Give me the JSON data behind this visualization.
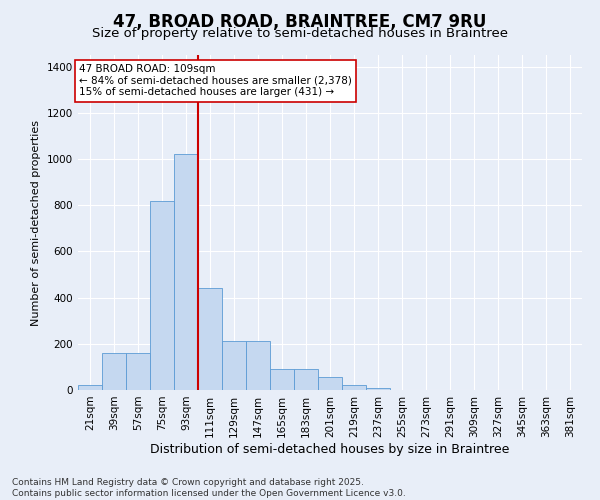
{
  "title": "47, BROAD ROAD, BRAINTREE, CM7 9RU",
  "subtitle": "Size of property relative to semi-detached houses in Braintree",
  "xlabel": "Distribution of semi-detached houses by size in Braintree",
  "ylabel": "Number of semi-detached properties",
  "categories": [
    "21sqm",
    "39sqm",
    "57sqm",
    "75sqm",
    "93sqm",
    "111sqm",
    "129sqm",
    "147sqm",
    "165sqm",
    "183sqm",
    "201sqm",
    "219sqm",
    "237sqm",
    "255sqm",
    "273sqm",
    "291sqm",
    "309sqm",
    "327sqm",
    "345sqm",
    "363sqm",
    "381sqm"
  ],
  "values": [
    20,
    160,
    160,
    820,
    1020,
    440,
    210,
    210,
    90,
    90,
    55,
    20,
    8,
    2,
    0,
    0,
    0,
    0,
    0,
    0,
    0
  ],
  "bar_color": "#c5d8f0",
  "bar_edge_color": "#5b9bd5",
  "vline_index": 5,
  "vline_color": "#cc0000",
  "annotation_text": "47 BROAD ROAD: 109sqm\n← 84% of semi-detached houses are smaller (2,378)\n15% of semi-detached houses are larger (431) →",
  "annotation_box_color": "#ffffff",
  "annotation_box_edge": "#cc0000",
  "ylim": [
    0,
    1450
  ],
  "yticks": [
    0,
    200,
    400,
    600,
    800,
    1000,
    1200,
    1400
  ],
  "background_color": "#e8eef8",
  "grid_color": "#ffffff",
  "footer_line1": "Contains HM Land Registry data © Crown copyright and database right 2025.",
  "footer_line2": "Contains public sector information licensed under the Open Government Licence v3.0.",
  "title_fontsize": 12,
  "subtitle_fontsize": 9.5,
  "xlabel_fontsize": 9,
  "ylabel_fontsize": 8,
  "tick_fontsize": 7.5,
  "annotation_fontsize": 7.5,
  "footer_fontsize": 6.5
}
